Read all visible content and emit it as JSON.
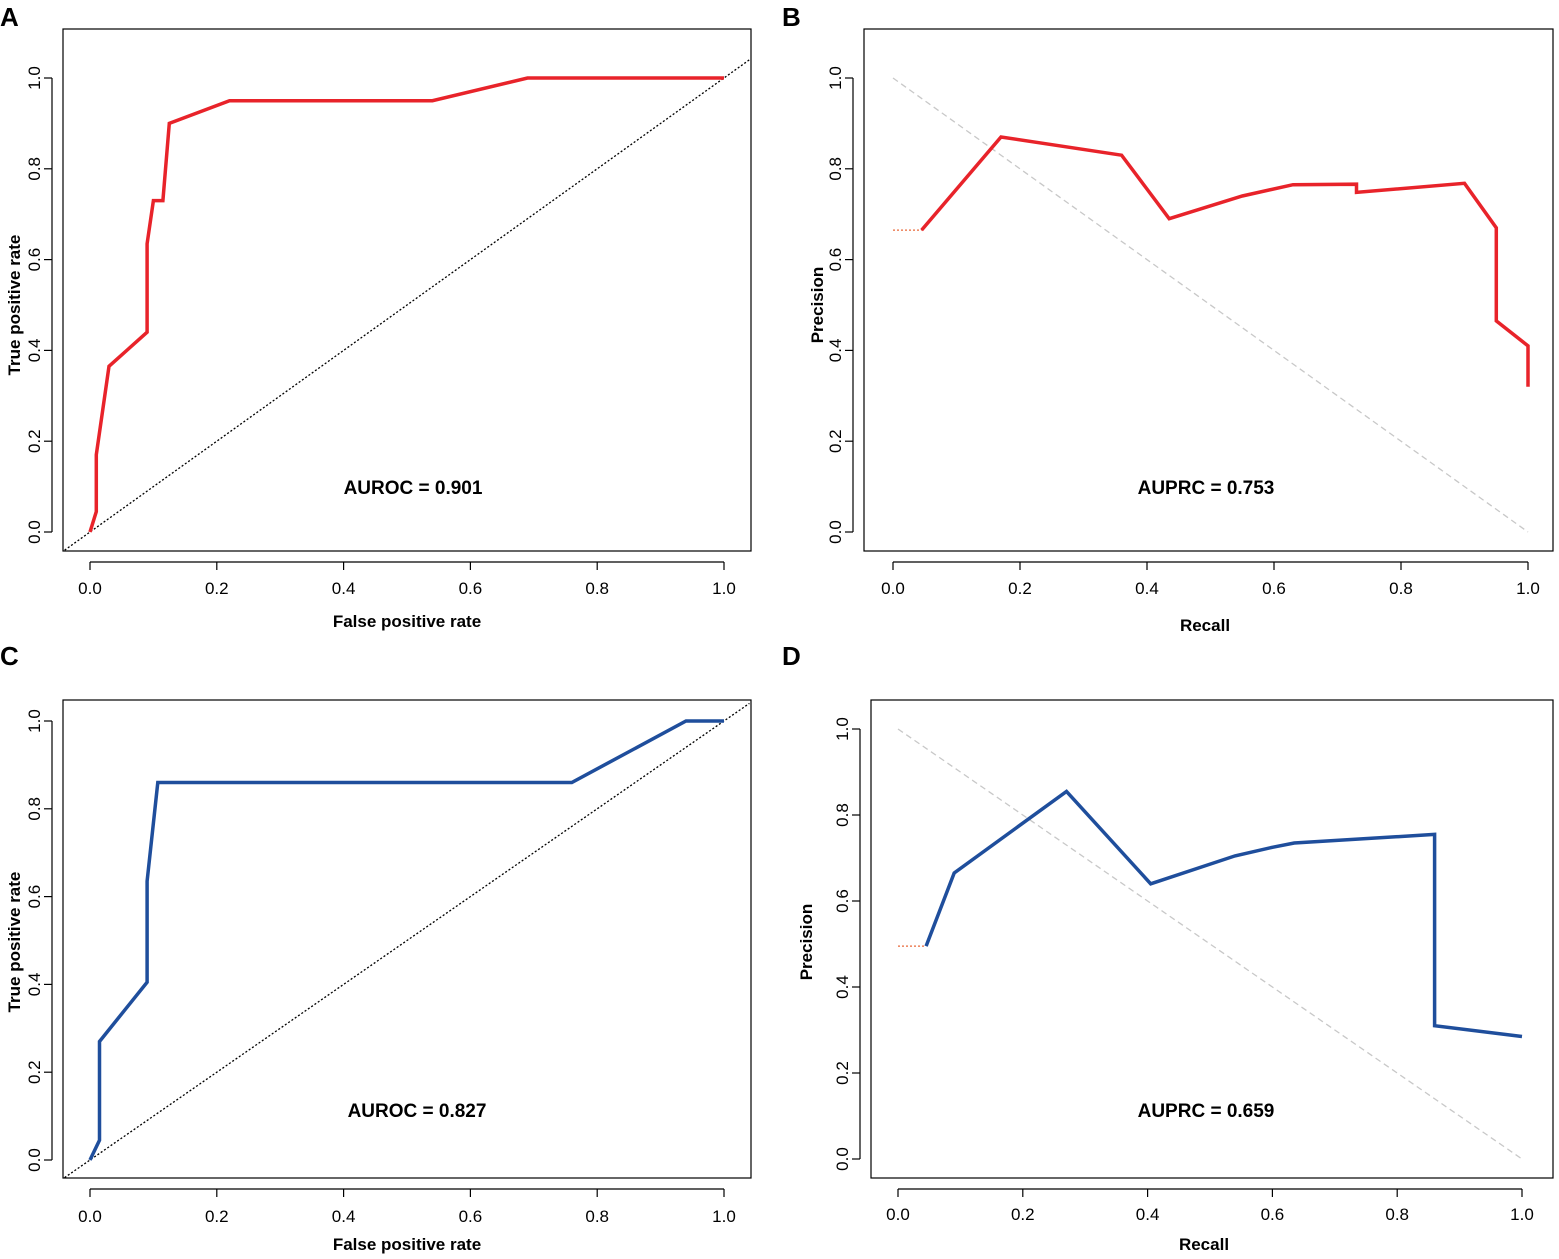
{
  "colors": {
    "red": "#e8232a",
    "blue": "#1f4e9c",
    "diag": "#000000",
    "pr_ref": "#c8c8c8",
    "stub": "#e8693a"
  },
  "chart_data": [
    {
      "panel": "A",
      "type": "line",
      "kind": "roc",
      "xlabel": "False positive rate",
      "ylabel": "True positive rate",
      "xticks": [
        "0.0",
        "0.2",
        "0.4",
        "0.6",
        "0.8",
        "1.0"
      ],
      "yticks": [
        "0.0",
        "0.2",
        "0.4",
        "0.6",
        "0.8",
        "1.0"
      ],
      "xlim": [
        0,
        1
      ],
      "ylim": [
        0,
        1
      ],
      "annotation": "AUROC = 0.901",
      "series": [
        {
          "name": "ROC",
          "color": "red",
          "x": [
            0.0,
            0.01,
            0.01,
            0.03,
            0.09,
            0.09,
            0.1,
            0.115,
            0.125,
            0.22,
            0.54,
            0.69,
            1.0
          ],
          "y": [
            0.0,
            0.045,
            0.17,
            0.365,
            0.44,
            0.635,
            0.73,
            0.73,
            0.9,
            0.95,
            0.95,
            1.0,
            1.0
          ]
        },
        {
          "name": "Chance",
          "color": "diag",
          "dash": "dotted",
          "x": [
            -0.04,
            1.04
          ],
          "y": [
            -0.04,
            1.04
          ]
        }
      ]
    },
    {
      "panel": "B",
      "type": "line",
      "kind": "pr",
      "xlabel": "Recall",
      "ylabel": "Precision",
      "xticks": [
        "0.0",
        "0.2",
        "0.4",
        "0.6",
        "0.8",
        "1.0"
      ],
      "yticks": [
        "0.0",
        "0.2",
        "0.4",
        "0.6",
        "0.8",
        "1.0"
      ],
      "xlim": [
        0,
        1
      ],
      "ylim": [
        0,
        1
      ],
      "annotation": "AUPRC = 0.753",
      "series": [
        {
          "name": "PR",
          "color": "red",
          "x": [
            0.045,
            0.17,
            0.36,
            0.435,
            0.55,
            0.63,
            0.73,
            0.73,
            0.9,
            0.95,
            0.95,
            1.0,
            1.0
          ],
          "y": [
            0.665,
            0.87,
            0.83,
            0.69,
            0.74,
            0.765,
            0.766,
            0.748,
            0.768,
            0.67,
            0.465,
            0.41,
            0.32
          ]
        },
        {
          "name": "Reference",
          "color": "pr_ref",
          "dash": "dashed",
          "x": [
            0.0,
            1.0
          ],
          "y": [
            1.0,
            0.0
          ]
        },
        {
          "name": "Start",
          "color": "stub",
          "dash": "dotted",
          "x": [
            0.0,
            0.045
          ],
          "y": [
            0.665,
            0.665
          ]
        }
      ]
    },
    {
      "panel": "C",
      "type": "line",
      "kind": "roc",
      "xlabel": "False positive rate",
      "ylabel": "True positive rate",
      "xticks": [
        "0.0",
        "0.2",
        "0.4",
        "0.6",
        "0.8",
        "1.0"
      ],
      "yticks": [
        "0.0",
        "0.2",
        "0.4",
        "0.6",
        "0.8",
        "1.0"
      ],
      "xlim": [
        0,
        1
      ],
      "ylim": [
        0,
        1
      ],
      "annotation": "AUROC = 0.827",
      "series": [
        {
          "name": "ROC",
          "color": "blue",
          "x": [
            0.0,
            0.015,
            0.015,
            0.09,
            0.09,
            0.107,
            0.76,
            0.94,
            1.0
          ],
          "y": [
            0.0,
            0.045,
            0.27,
            0.405,
            0.635,
            0.86,
            0.86,
            1.0,
            1.0
          ]
        },
        {
          "name": "Chance",
          "color": "diag",
          "dash": "dotted",
          "x": [
            -0.04,
            1.04
          ],
          "y": [
            -0.04,
            1.04
          ]
        }
      ]
    },
    {
      "panel": "D",
      "type": "line",
      "kind": "pr",
      "xlabel": "Recall",
      "ylabel": "Precision",
      "xticks": [
        "0.0",
        "0.2",
        "0.4",
        "0.6",
        "0.8",
        "1.0"
      ],
      "yticks": [
        "0.0",
        "0.2",
        "0.4",
        "0.6",
        "0.8",
        "1.0"
      ],
      "xlim": [
        0,
        1
      ],
      "ylim": [
        0,
        1
      ],
      "annotation": "AUPRC = 0.659",
      "series": [
        {
          "name": "PR",
          "color": "blue",
          "x": [
            0.045,
            0.09,
            0.27,
            0.405,
            0.54,
            0.6,
            0.635,
            0.86,
            0.86,
            1.0
          ],
          "y": [
            0.495,
            0.665,
            0.855,
            0.64,
            0.705,
            0.725,
            0.735,
            0.755,
            0.31,
            0.285
          ]
        },
        {
          "name": "Reference",
          "color": "pr_ref",
          "dash": "dashed",
          "x": [
            0.0,
            1.0
          ],
          "y": [
            1.0,
            0.0
          ]
        },
        {
          "name": "Start",
          "color": "stub",
          "dash": "dotted",
          "x": [
            0.0,
            0.045
          ],
          "y": [
            0.495,
            0.495
          ]
        }
      ]
    }
  ]
}
